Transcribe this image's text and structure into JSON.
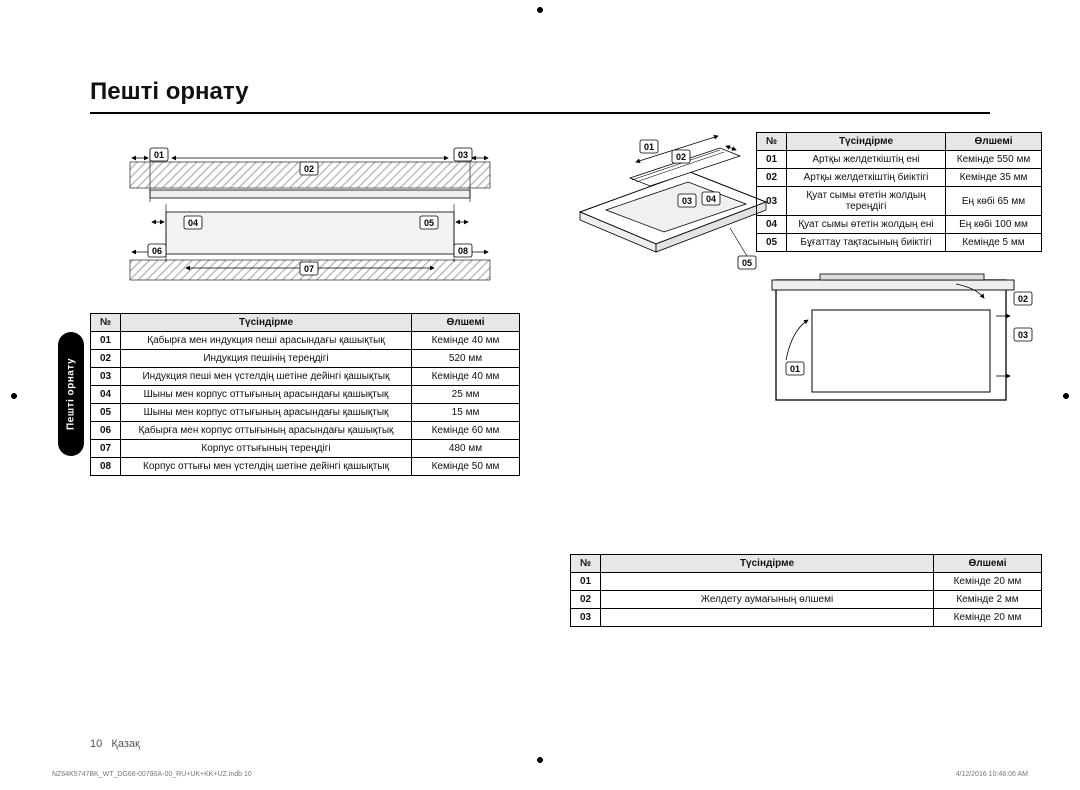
{
  "title": "Пешті орнату",
  "side_tab": "Пешті орнату",
  "footer_page": "10",
  "footer_lang": "Қазақ",
  "print_left": "NZ64K5747BK_WT_DG68-00790A-00_RU+UK+KK+UZ.indb   10",
  "print_right": "4/12/2016   10:48:06 AM",
  "labels": {
    "d1": {
      "l01": "01",
      "l02": "02",
      "l03": "03",
      "l04": "04",
      "l05": "05",
      "l06": "06",
      "l07": "07",
      "l08": "08"
    },
    "d2": {
      "l01": "01",
      "l02": "02",
      "l03": "03",
      "l04": "04",
      "l05": "05"
    },
    "d3": {
      "l01": "01",
      "l02": "02",
      "l03": "03"
    }
  },
  "table1": {
    "headers": {
      "num": "№",
      "desc": "Түсіндірме",
      "val": "Өлшемі"
    },
    "rows": [
      {
        "n": "01",
        "d": "Қабырға мен индукция пеші арасындағы қашықтық",
        "v": "Кемінде 40 мм"
      },
      {
        "n": "02",
        "d": "Индукция пешінің тереңдігі",
        "v": "520 мм"
      },
      {
        "n": "03",
        "d": "Индукция пеші мен үстелдің шетіне дейінгі қашықтық",
        "v": "Кемінде 40 мм"
      },
      {
        "n": "04",
        "d": "Шыны мен корпус оттығының арасындағы қашықтық",
        "v": "25 мм"
      },
      {
        "n": "05",
        "d": "Шыны мен корпус оттығының арасындағы қашықтық",
        "v": "15 мм"
      },
      {
        "n": "06",
        "d": "Қабырға мен корпус оттығының арасындағы қашықтық",
        "v": "Кемінде 60 мм"
      },
      {
        "n": "07",
        "d": "Корпус оттығының тереңдігі",
        "v": "480 мм"
      },
      {
        "n": "08",
        "d": "Корпус оттығы мен үстелдің шетіне дейінгі қашықтық",
        "v": "Кемінде 50 мм"
      }
    ]
  },
  "table2": {
    "headers": {
      "num": "№",
      "desc": "Түсіндірме",
      "val": "Өлшемі"
    },
    "rows": [
      {
        "n": "01",
        "d": "Артқы желдеткіштің ені",
        "v": "Кемінде 550 мм"
      },
      {
        "n": "02",
        "d": "Артқы желдеткіштің биіктігі",
        "v": "Кемінде 35 мм"
      },
      {
        "n": "03",
        "d": "Қуат сымы өтетін жолдың тереңдігі",
        "v": "Ең көбі 65 мм"
      },
      {
        "n": "04",
        "d": "Қуат сымы өтетін жолдың ені",
        "v": "Ең көбі 100 мм"
      },
      {
        "n": "05",
        "d": "Бұғаттау тақтасының биіктігі",
        "v": "Кемінде 5 мм"
      }
    ]
  },
  "table3": {
    "headers": {
      "num": "№",
      "desc": "Түсіндірме",
      "val": "Өлшемі"
    },
    "rows": [
      {
        "n": "01",
        "d": "",
        "v": "Кемінде 20 мм"
      },
      {
        "n": "02",
        "d": "Желдету аумағының өлшемі",
        "v": "Кемінде 2 мм"
      },
      {
        "n": "03",
        "d": "",
        "v": "Кемінде 20 мм"
      }
    ]
  },
  "style": {
    "hatch_color": "#bdbdbd",
    "header_bg": "#e7e7e7",
    "font_base": 10
  }
}
